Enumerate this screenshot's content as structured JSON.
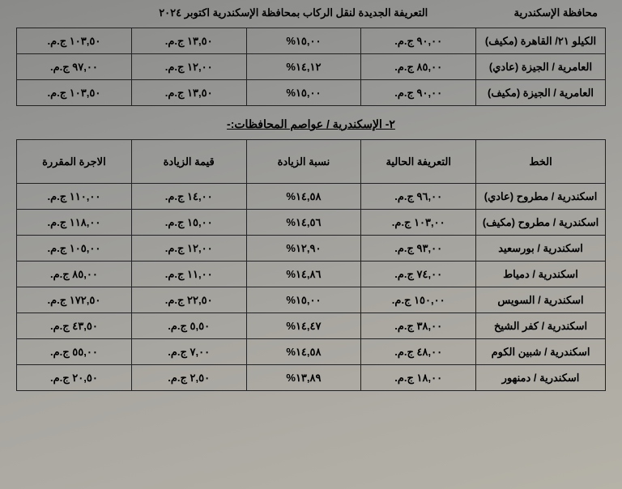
{
  "header": {
    "province": "محافظة الإسكندرية",
    "title": "التعريفة الجديدة لنقل الركاب بمحافظة الإسكندرية اكتوبر ٢٠٢٤"
  },
  "table1": {
    "rows": [
      {
        "route": "الكيلو ٢١/ القاهرة (مكيف)",
        "current": "٩٠,٠٠ ج.م.",
        "pct": "١٥,٠٠%",
        "inc": "١٣,٥٠ ج.م.",
        "new": "١٠٣,٥٠ ج.م."
      },
      {
        "route": "العامرية / الجيزة (عادي)",
        "current": "٨٥,٠٠ ج.م.",
        "pct": "١٤,١٢%",
        "inc": "١٢,٠٠ ج.م.",
        "new": "٩٧,٠٠ ج.م."
      },
      {
        "route": "العامرية / الجيزة (مكيف)",
        "current": "٩٠,٠٠ ج.م.",
        "pct": "١٥,٠٠%",
        "inc": "١٣,٥٠ ج.م.",
        "new": "١٠٣,٥٠ ج.م."
      }
    ]
  },
  "section2_title": "٢- الإسكندرية / عواصم المحافظات:-",
  "table2": {
    "headers": {
      "route": "الخط",
      "current": "التعريفة الحالية",
      "pct": "نسبة الزيادة",
      "inc": "قيمة الزيادة",
      "new": "الاجرة المقررة"
    },
    "rows": [
      {
        "route": "اسكندرية / مطروح (عادي)",
        "current": "٩٦,٠٠ ج.م.",
        "pct": "١٤,٥٨%",
        "inc": "١٤,٠٠ ج.م.",
        "new": "١١٠,٠٠ ج.م."
      },
      {
        "route": "اسكندرية / مطروح (مكيف)",
        "current": "١٠٣,٠٠ ج.م.",
        "pct": "١٤,٥٦%",
        "inc": "١٥,٠٠ ج.م.",
        "new": "١١٨,٠٠ ج.م."
      },
      {
        "route": "اسكندرية / بورسعيد",
        "current": "٩٣,٠٠ ج.م.",
        "pct": "١٢,٩٠%",
        "inc": "١٢,٠٠ ج.م.",
        "new": "١٠٥,٠٠ ج.م."
      },
      {
        "route": "اسكندرية / دمياط",
        "current": "٧٤,٠٠ ج.م.",
        "pct": "١٤,٨٦%",
        "inc": "١١,٠٠ ج.م.",
        "new": "٨٥,٠٠ ج.م."
      },
      {
        "route": "اسكندرية / السويس",
        "current": "١٥٠,٠٠ ج.م.",
        "pct": "١٥,٠٠%",
        "inc": "٢٢,٥٠ ج.م.",
        "new": "١٧٢,٥٠ ج.م."
      },
      {
        "route": "اسكندرية / كفر الشيخ",
        "current": "٣٨,٠٠ ج.م.",
        "pct": "١٤,٤٧%",
        "inc": "٥,٥٠ ج.م.",
        "new": "٤٣,٥٠ ج.م."
      },
      {
        "route": "اسكندرية / شبين الكوم",
        "current": "٤٨,٠٠ ج.م.",
        "pct": "١٤,٥٨%",
        "inc": "٧,٠٠ ج.م.",
        "new": "٥٥,٠٠ ج.م."
      },
      {
        "route": "اسكندرية / دمنهور",
        "current": "١٨,٠٠ ج.م.",
        "pct": "١٣,٨٩%",
        "inc": "٢,٥٠ ج.م.",
        "new": "٢٠,٥٠ ج.م."
      }
    ]
  }
}
